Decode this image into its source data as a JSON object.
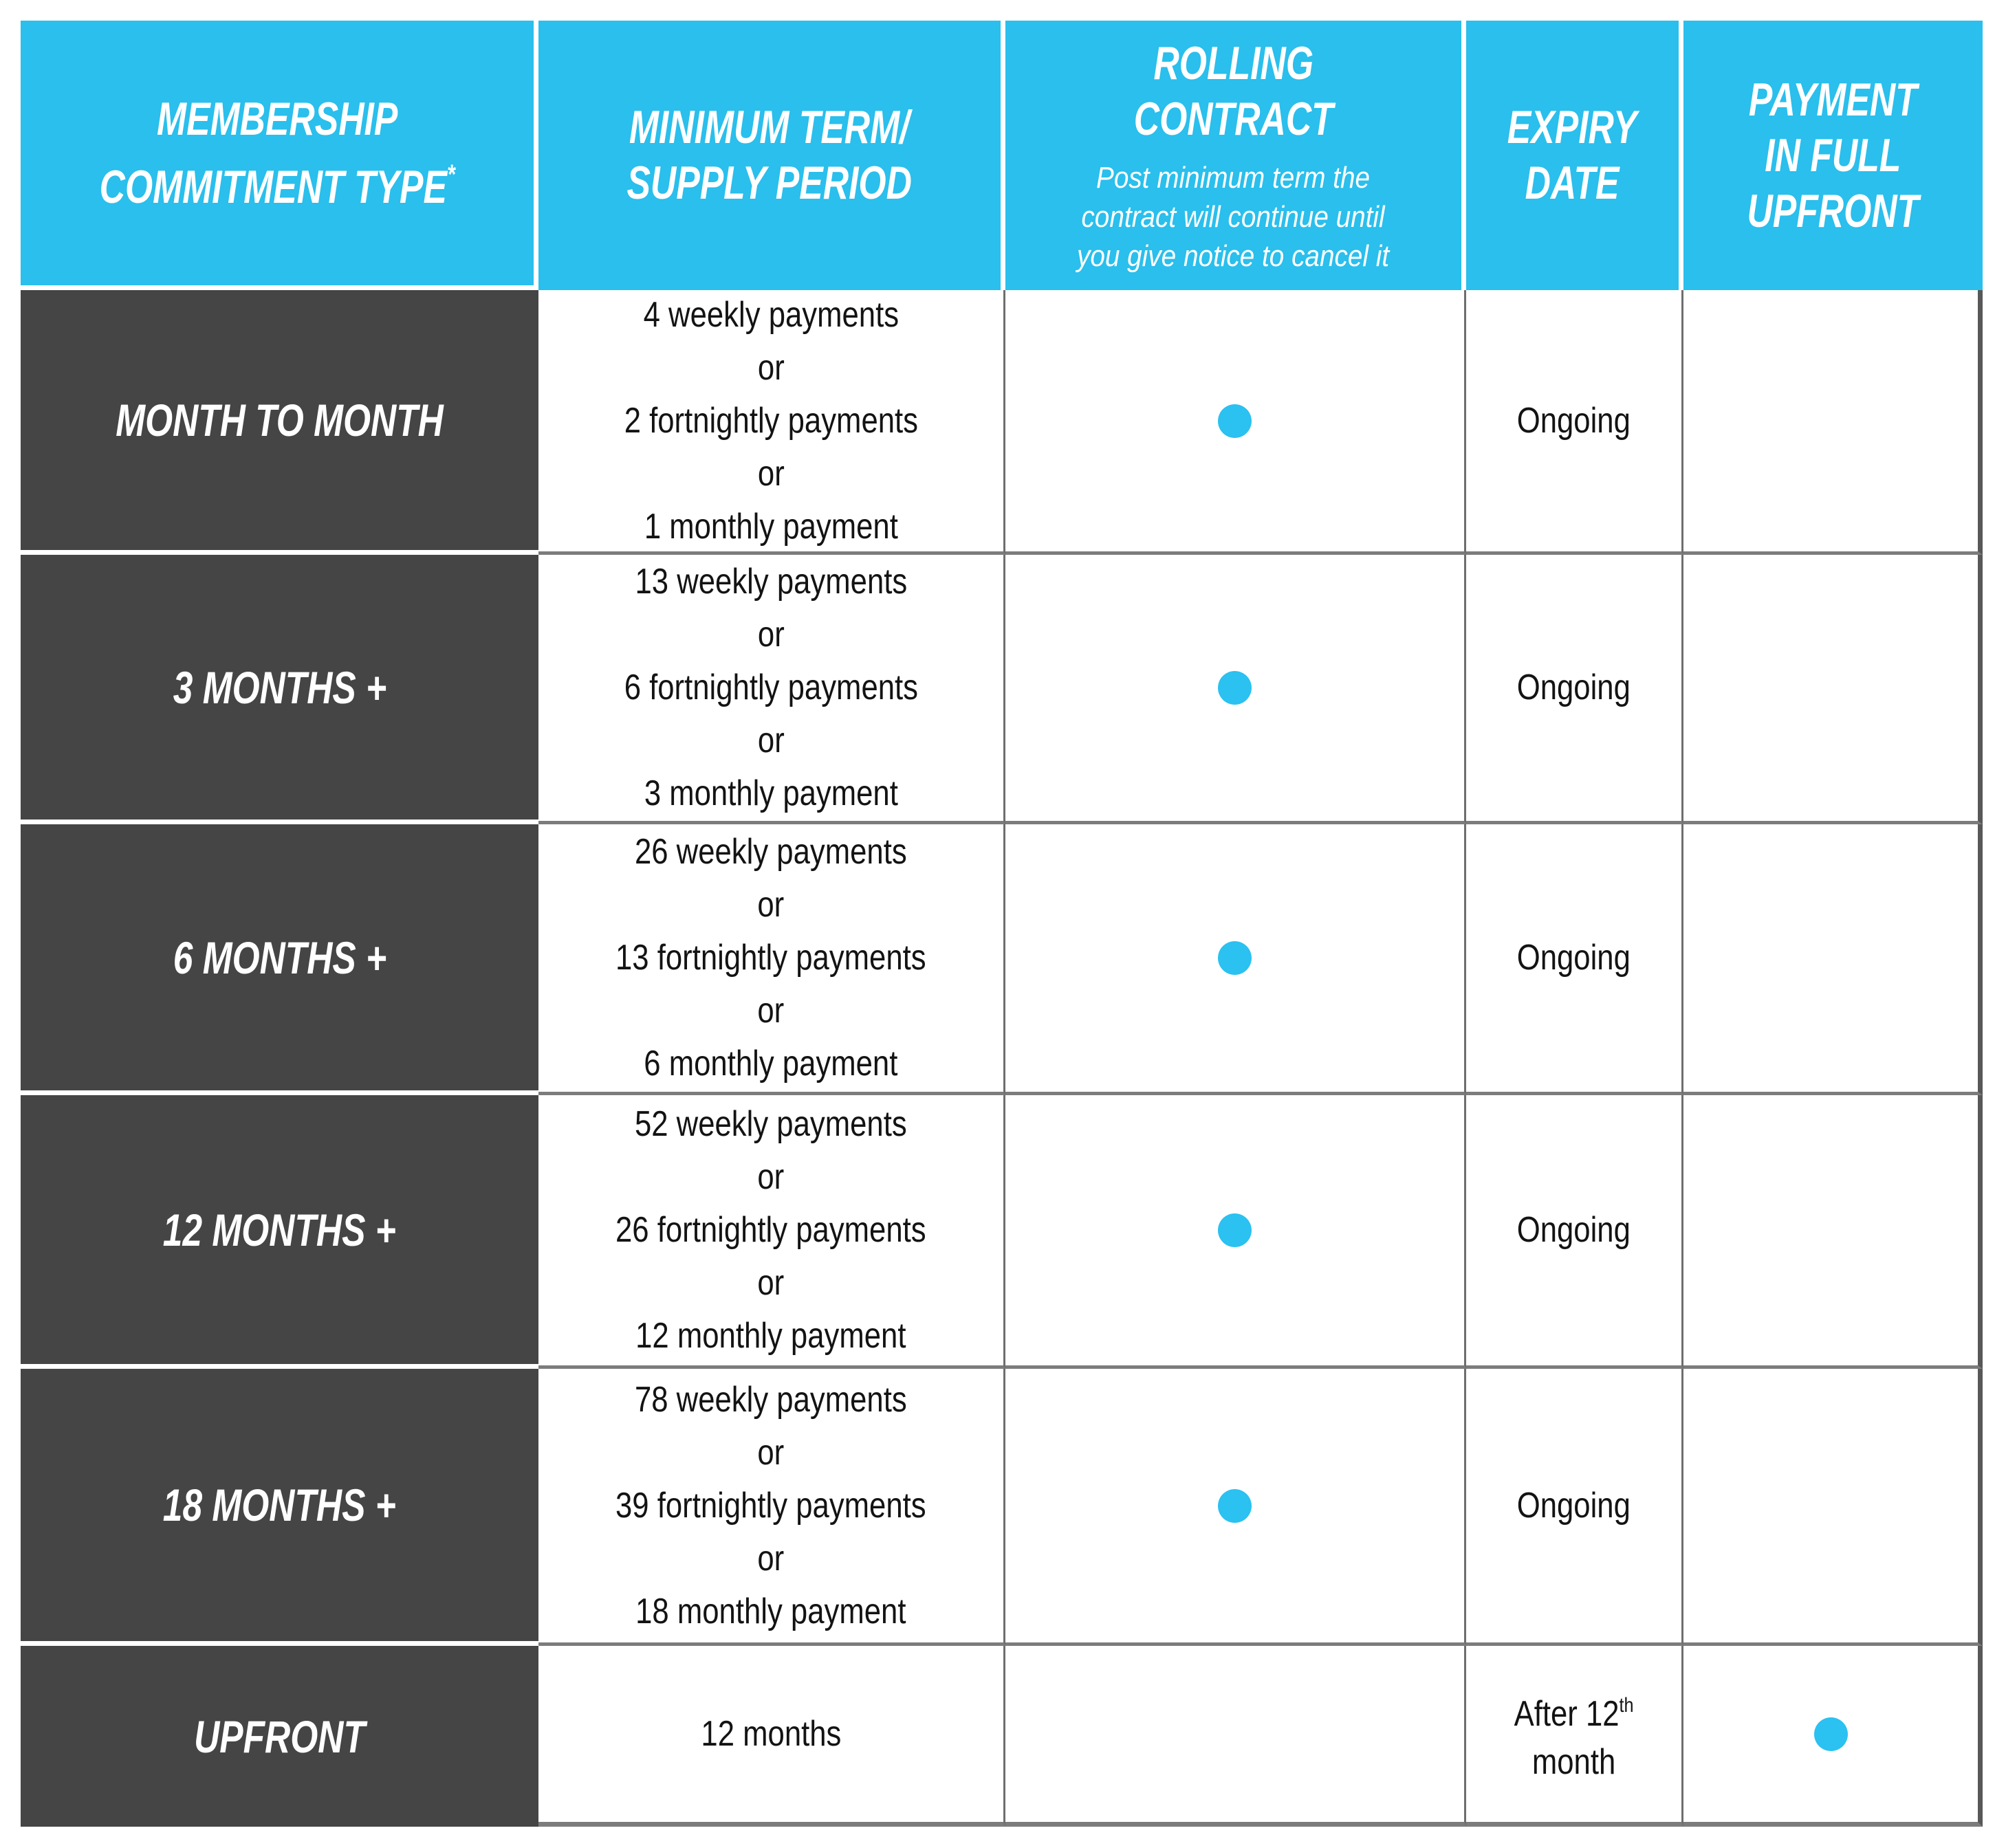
{
  "colors": {
    "header_background": "#2ABFEC",
    "header_text": "#FFFFFF",
    "row_label_background": "#454545",
    "row_label_text": "#FFFFFF",
    "body_text": "#131313",
    "dot": "#2BC1F0",
    "row_border": "#7C7C7C",
    "column_border": "#6E6E6E",
    "edge_border": "#585858"
  },
  "header": {
    "membership": {
      "line1": "MEMBERSHIP",
      "line2": "COMMITMENT TYPE",
      "asterisk": "*"
    },
    "min_term": {
      "line1": "MINIMUM TERM/",
      "line2": "SUPPLY PERIOD"
    },
    "rolling": {
      "line1": "ROLLING",
      "line2": "CONTRACT",
      "note1": "Post minimum term the",
      "note2": "contract will continue until",
      "note3": "you give notice to cancel it"
    },
    "expiry": {
      "line1": "EXPIRY",
      "line2": "DATE"
    },
    "payment": {
      "line1": "PAYMENT",
      "line2": "IN FULL",
      "line3": "UPFRONT"
    }
  },
  "rows": [
    {
      "type": "MONTH TO MONTH",
      "term": [
        "4 weekly payments",
        "or",
        "2 fortnightly payments",
        "or",
        "1 monthly payment"
      ],
      "rolling_contract": true,
      "expiry": "Ongoing",
      "payment_in_full_upfront": false
    },
    {
      "type": "3 MONTHS +",
      "term": [
        "13 weekly payments",
        "or",
        "6 fortnightly payments",
        "or",
        "3 monthly payment"
      ],
      "rolling_contract": true,
      "expiry": "Ongoing",
      "payment_in_full_upfront": false
    },
    {
      "type": "6 MONTHS +",
      "term": [
        "26 weekly payments",
        "or",
        "13 fortnightly payments",
        "or",
        "6 monthly payment"
      ],
      "rolling_contract": true,
      "expiry": "Ongoing",
      "payment_in_full_upfront": false
    },
    {
      "type": "12 MONTHS +",
      "term": [
        "52 weekly payments",
        "or",
        "26 fortnightly payments",
        "or",
        "12 monthly payment"
      ],
      "rolling_contract": true,
      "expiry": "Ongoing",
      "payment_in_full_upfront": false
    },
    {
      "type": "18 MONTHS +",
      "term": [
        "78 weekly payments",
        "or",
        "39 fortnightly payments",
        "or",
        "18 monthly payment"
      ],
      "rolling_contract": true,
      "expiry": "Ongoing",
      "payment_in_full_upfront": false
    },
    {
      "type": "UPFRONT",
      "term": [
        "12 months"
      ],
      "rolling_contract": false,
      "expiry_prefix": "After 12",
      "expiry_superscript": "th",
      "expiry_line2": "month",
      "payment_in_full_upfront": true
    }
  ]
}
